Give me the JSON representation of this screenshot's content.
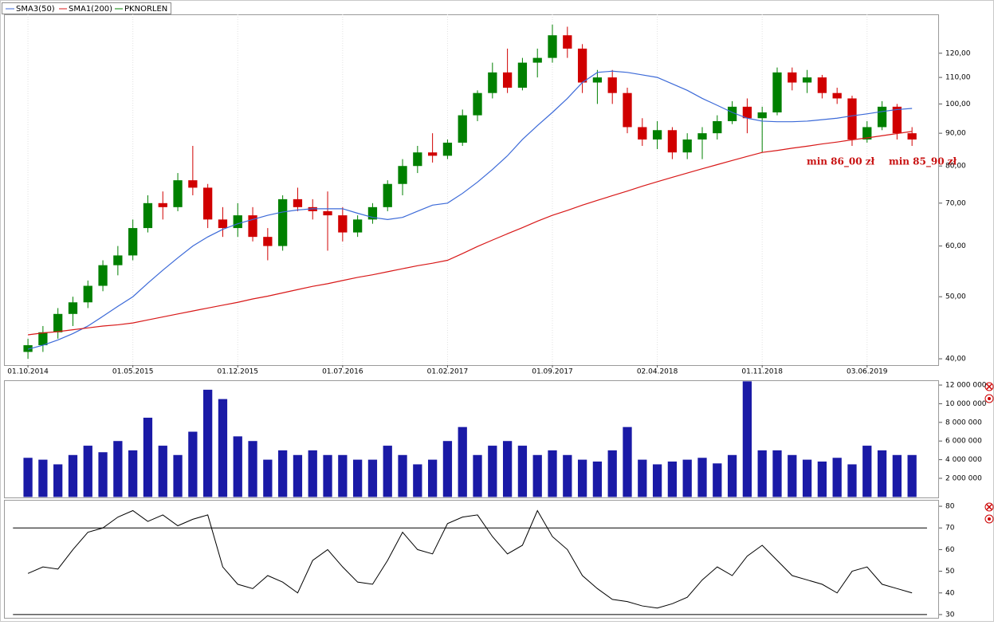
{
  "chart_data": [
    {
      "type": "candlestick",
      "log_scale": true,
      "xlim": [
        -1.6,
        60.8
      ],
      "xticks": [
        {
          "value": 0,
          "label": "01.10.2014"
        },
        {
          "value": 7,
          "label": "01.05.2015"
        },
        {
          "value": 14,
          "label": "01.12.2015"
        },
        {
          "value": 21,
          "label": "01.07.2016"
        },
        {
          "value": 28,
          "label": "01.02.2017"
        },
        {
          "value": 35,
          "label": "01.09.2017"
        },
        {
          "value": 42,
          "label": "02.04.2018"
        },
        {
          "value": 49,
          "label": "01.11.2018"
        },
        {
          "value": 56,
          "label": "03.06.2019"
        }
      ],
      "ylim": [
        39.1,
        138
      ],
      "yticks": [
        {
          "value": 40,
          "label": "40,00"
        },
        {
          "value": 50,
          "label": "50,00"
        },
        {
          "value": 60,
          "label": "60,00"
        },
        {
          "value": 70,
          "label": "70,00"
        },
        {
          "value": 80,
          "label": "80,00"
        },
        {
          "value": 90,
          "label": "90,00"
        },
        {
          "value": 100,
          "label": "100,00"
        },
        {
          "value": 110,
          "label": "110,00"
        },
        {
          "value": 120,
          "label": "120,00"
        }
      ],
      "candles": {
        "name": "PKNORLEN",
        "color": "#008000",
        "up_color": "#008000",
        "down_color": "#d00000",
        "open": [
          41,
          42,
          44,
          47,
          49,
          52,
          56,
          58,
          64,
          70,
          69,
          76,
          74,
          66,
          64,
          67,
          62,
          60,
          71,
          69,
          68,
          67,
          63,
          66,
          69,
          75,
          80,
          84,
          83,
          87,
          96,
          104,
          112,
          106,
          116,
          118,
          128,
          122,
          108,
          110,
          104,
          92,
          88,
          91,
          84,
          88,
          90,
          94,
          99,
          95,
          97,
          112,
          108,
          110,
          104,
          102,
          88,
          92,
          99,
          90
        ],
        "high": [
          43,
          45,
          48,
          50,
          53,
          57,
          60,
          66,
          72,
          73,
          78,
          86,
          75,
          69,
          70,
          69,
          64,
          72,
          74,
          71,
          73,
          69,
          67,
          70,
          76,
          82,
          86,
          90,
          88,
          98,
          105,
          116,
          122,
          118,
          122,
          133,
          132,
          124,
          113,
          113,
          106,
          95,
          94,
          92,
          90,
          92,
          96,
          101,
          102,
          99,
          114,
          114,
          113,
          111,
          106,
          103,
          94,
          101,
          100,
          92
        ],
        "low": [
          40,
          41,
          43,
          45,
          48,
          51,
          54,
          57,
          63,
          66,
          68,
          72,
          64,
          62,
          62,
          61,
          57,
          59,
          68,
          66,
          59,
          61,
          62,
          65,
          68,
          72,
          78,
          81,
          82,
          86,
          94,
          102,
          104,
          105,
          110,
          116,
          118,
          104,
          100,
          100,
          90,
          86,
          85,
          82,
          82,
          82,
          88,
          93,
          90,
          84,
          96,
          105,
          104,
          102,
          100,
          86,
          87,
          91,
          88,
          86
        ],
        "close": [
          42,
          44,
          47,
          49,
          52,
          56,
          58,
          64,
          70,
          69,
          76,
          74,
          66,
          64,
          67,
          62,
          60,
          71,
          69,
          68,
          67,
          63,
          66,
          69,
          75,
          80,
          84,
          83,
          87,
          96,
          104,
          112,
          106,
          116,
          118,
          128,
          122,
          108,
          110,
          104,
          92,
          88,
          91,
          84,
          88,
          90,
          94,
          99,
          95,
          97,
          112,
          108,
          110,
          104,
          102,
          88,
          92,
          99,
          90,
          88
        ]
      },
      "series": [
        {
          "name": "SMA3(50)",
          "color": "#3c6ad8",
          "values": [
            41.4,
            42,
            42.8,
            43.8,
            45,
            46.6,
            48.3,
            50,
            52.5,
            55,
            57.5,
            60,
            62,
            63.7,
            65,
            66,
            67,
            67.8,
            68.3,
            68.6,
            68.6,
            68.6,
            67.5,
            66.5,
            66,
            66.5,
            68,
            69.5,
            70,
            72.5,
            75.5,
            79,
            83,
            88,
            92.5,
            97,
            102,
            108,
            112,
            112.5,
            112,
            111,
            110,
            107.5,
            105,
            102,
            99.5,
            97,
            95,
            94,
            93.8,
            93.8,
            94,
            94.5,
            95,
            95.8,
            96.5,
            97.3,
            98,
            98.4
          ]
        },
        {
          "name": "SMA1(200)",
          "color": "#d81818",
          "values": [
            43.6,
            43.9,
            44.1,
            44.4,
            44.7,
            45,
            45.2,
            45.5,
            46,
            46.5,
            47,
            47.5,
            48,
            48.5,
            49,
            49.6,
            50.1,
            50.7,
            51.3,
            51.9,
            52.4,
            53,
            53.6,
            54.1,
            54.7,
            55.3,
            55.9,
            56.4,
            57,
            58.4,
            59.9,
            61.3,
            62.7,
            64.1,
            65.6,
            67,
            68.2,
            69.5,
            70.7,
            71.9,
            73.1,
            74.4,
            75.6,
            76.8,
            78,
            79.2,
            80.4,
            81.6,
            82.8,
            84,
            84.6,
            85.3,
            85.9,
            86.6,
            87.2,
            87.9,
            88.5,
            89.2,
            89.9,
            90.6
          ]
        }
      ],
      "annotations": [
        "min 86_00 zł",
        "min 85_90 zł"
      ]
    },
    {
      "type": "bar",
      "xlim": [
        -1.6,
        60.8
      ],
      "color": "#1a1aa6",
      "ylim": [
        0,
        12430000
      ],
      "yticks": [
        {
          "value": 2000000,
          "label": "2 000 000"
        },
        {
          "value": 4000000,
          "label": "4 000 000"
        },
        {
          "value": 6000000,
          "label": "6 000 000"
        },
        {
          "value": 8000000,
          "label": "8 000 000"
        },
        {
          "value": 10000000,
          "label": "10 000 000"
        },
        {
          "value": 12000000,
          "label": "12 000 000"
        }
      ],
      "values": [
        4200000,
        4000000,
        3500000,
        4500000,
        5500000,
        4800000,
        6000000,
        5000000,
        8500000,
        5500000,
        4500000,
        7000000,
        11500000,
        10500000,
        6500000,
        6000000,
        4000000,
        5000000,
        4500000,
        5000000,
        4500000,
        4500000,
        4000000,
        4000000,
        5500000,
        4500000,
        3500000,
        4000000,
        6000000,
        7500000,
        4500000,
        5500000,
        6000000,
        5500000,
        4500000,
        5000000,
        4500000,
        4000000,
        3800000,
        5000000,
        7500000,
        4000000,
        3500000,
        3800000,
        4000000,
        4200000,
        3600000,
        4500000,
        12400000,
        5000000,
        5000000,
        4500000,
        4000000,
        3800000,
        4200000,
        3500000,
        5500000,
        5000000,
        4500000,
        4500000
      ]
    },
    {
      "type": "line",
      "xlim": [
        -1.6,
        60.8
      ],
      "color": "#000000",
      "ylim": [
        28.5,
        82.6
      ],
      "yticks": [
        30,
        40,
        50,
        60,
        70,
        80
      ],
      "levels": [
        70,
        30
      ],
      "values": [
        49,
        52,
        51,
        60,
        68,
        70,
        75,
        78,
        73,
        76,
        71,
        74,
        76,
        52,
        44,
        42,
        48,
        45,
        40,
        55,
        60,
        52,
        45,
        44,
        55,
        68,
        60,
        58,
        72,
        75,
        76,
        66,
        58,
        62,
        78,
        66,
        60,
        48,
        42,
        37,
        36,
        34,
        33,
        35,
        38,
        46,
        52,
        48,
        57,
        62,
        55,
        48,
        46,
        44,
        40,
        50,
        52,
        44,
        42,
        40
      ]
    }
  ]
}
